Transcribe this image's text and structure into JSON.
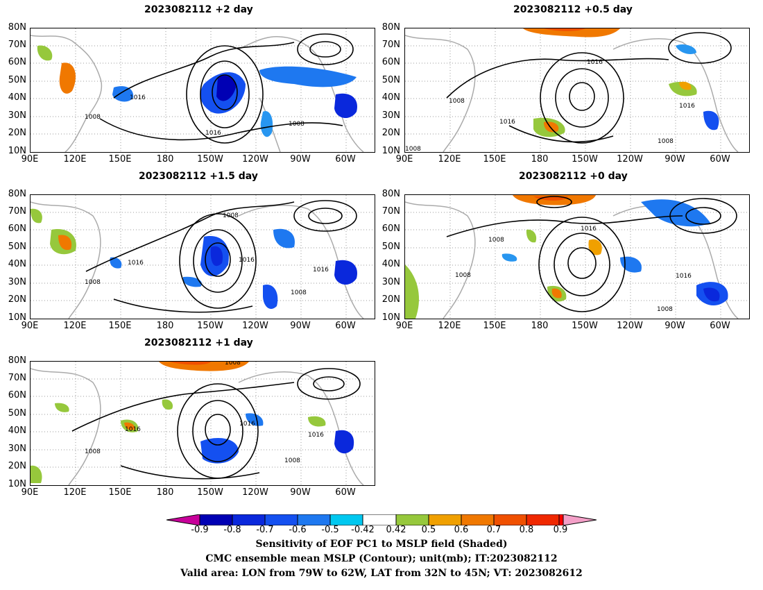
{
  "panels": [
    {
      "title": "2023082112 +2 day"
    },
    {
      "title": "2023082112 +0.5 day"
    },
    {
      "title": "2023082112 +1.5 day"
    },
    {
      "title": "2023082112 +0 day"
    },
    {
      "title": "2023082112 +1 day"
    }
  ],
  "lat_labels": [
    "80N",
    "70N",
    "60N",
    "50N",
    "40N",
    "30N",
    "20N",
    "10N"
  ],
  "lon_labels": [
    "90E",
    "120E",
    "150E",
    "180",
    "150W",
    "120W",
    "90W",
    "60W"
  ],
  "contour_labels": {
    "high": "1016",
    "low": "1008"
  },
  "colorbar": {
    "labels": [
      "-0.9",
      "-0.8",
      "-0.7",
      "-0.6",
      "-0.5",
      "-0.42",
      "0.42",
      "0.5",
      "0.6",
      "0.7",
      "0.8",
      "0.9"
    ],
    "colors": [
      "#c8009a",
      "#0000b4",
      "#0a28dc",
      "#1450f0",
      "#1e78f0",
      "#2896f0",
      "#00c8f0",
      "#ffffff",
      "#96c83c",
      "#f0a000",
      "#f07800",
      "#f05000",
      "#f02800",
      "#ff0000",
      "#f4a0c8"
    ]
  },
  "footer": {
    "line1": "Sensitivity of EOF PC1 to MSLP field (Shaded)",
    "line2": "CMC ensemble mean MSLP (Contour); unit(mb); IT:2023082112",
    "line3": "Valid area: LON from 79W to 62W, LAT from 32N to 45N; VT: 2023082612"
  }
}
